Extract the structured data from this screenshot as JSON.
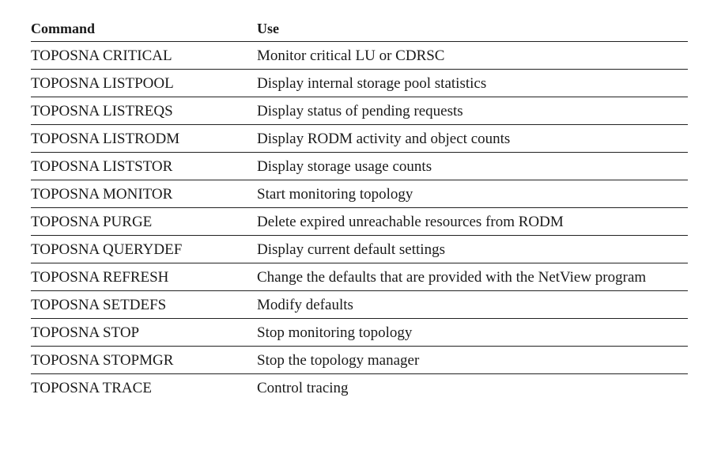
{
  "table": {
    "headers": {
      "command": "Command",
      "use": "Use"
    },
    "rows": [
      {
        "command": "TOPOSNA CRITICAL",
        "use": "Monitor critical LU or CDRSC"
      },
      {
        "command": "TOPOSNA LISTPOOL",
        "use": "Display internal storage pool statistics"
      },
      {
        "command": "TOPOSNA LISTREQS",
        "use": "Display status of pending requests"
      },
      {
        "command": "TOPOSNA LISTRODM",
        "use": "Display RODM activity and object counts"
      },
      {
        "command": "TOPOSNA LISTSTOR",
        "use": "Display storage usage counts"
      },
      {
        "command": "TOPOSNA MONITOR",
        "use": "Start monitoring topology"
      },
      {
        "command": "TOPOSNA PURGE",
        "use": "Delete expired unreachable resources from RODM"
      },
      {
        "command": "TOPOSNA QUERYDEF",
        "use": "Display current default settings"
      },
      {
        "command": "TOPOSNA REFRESH",
        "use": "Change the defaults that are provided with the NetView program"
      },
      {
        "command": "TOPOSNA SETDEFS",
        "use": "Modify defaults"
      },
      {
        "command": "TOPOSNA STOP",
        "use": "Stop monitoring topology"
      },
      {
        "command": "TOPOSNA STOPMGR",
        "use": "Stop the topology manager"
      },
      {
        "command": "TOPOSNA TRACE",
        "use": "Control tracing"
      }
    ]
  }
}
